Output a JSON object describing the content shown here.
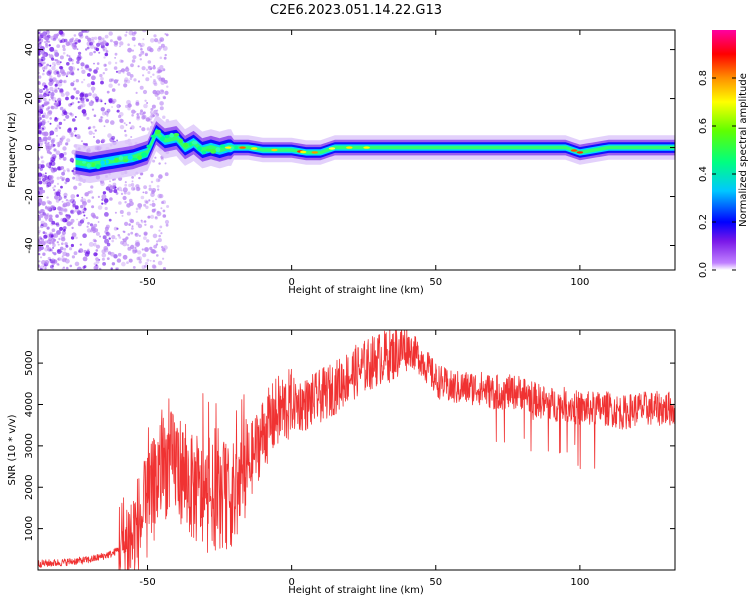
{
  "figure": {
    "title": "C2E6.2023.051.14.22.G13"
  },
  "colorbar": {
    "label": "Normalized spectral amplitude",
    "ticks": [
      "0.0",
      "0.2",
      "0.4",
      "0.6",
      "0.8"
    ],
    "tick_values": [
      0.0,
      0.2,
      0.4,
      0.6,
      0.8
    ],
    "range": [
      0,
      1
    ],
    "colormap": [
      "#ffffff",
      "#8a2be2",
      "#0000ff",
      "#00ffff",
      "#00ff00",
      "#ffff00",
      "#ff7f00",
      "#ff0000",
      "#ff00ff"
    ]
  },
  "colors": {
    "snr_line": "#f03232",
    "spec_low": "#b682f2",
    "spec_dark": "#6a10e8"
  },
  "chart_data": [
    {
      "type": "heatmap",
      "xlabel": "Height of straight line (km)",
      "ylabel": "Frequency (Hz)",
      "xlim": [
        -88,
        133
      ],
      "ylim": [
        -50,
        48
      ],
      "xticks": [
        -50,
        0,
        50,
        100
      ],
      "yticks": [
        -40,
        -20,
        0,
        20,
        40
      ],
      "ridge": {
        "x": [
          -75,
          -70,
          -65,
          -60,
          -55,
          -50,
          -47,
          -44,
          -40,
          -37,
          -34,
          -31,
          -28,
          -25,
          -22,
          -20,
          -15,
          -10,
          -5,
          0,
          5,
          10,
          15,
          20,
          30,
          50,
          80,
          95,
          100,
          105,
          110,
          133
        ],
        "frequency": [
          -6,
          -7,
          -6,
          -5,
          -4,
          -2,
          6,
          3,
          4,
          0,
          2,
          -1,
          0,
          -1,
          0,
          0,
          0,
          -1,
          -1,
          -1,
          -2,
          -2,
          0,
          0,
          0,
          0,
          0,
          0,
          -2,
          -1,
          0,
          0
        ]
      }
    },
    {
      "type": "line",
      "xlabel": "Height of straight line (km)",
      "ylabel": "SNR (10 * v/v)",
      "xlim": [
        -88,
        133
      ],
      "ylim": [
        0,
        5800
      ],
      "xticks": [
        -50,
        0,
        50,
        100
      ],
      "yticks": [
        1000,
        2000,
        3000,
        4000,
        5000
      ],
      "series": [
        {
          "x": [
            -88,
            -80,
            -70,
            -62,
            -55,
            -50,
            -45,
            -40,
            -35,
            -30,
            -25,
            -20,
            -15,
            -10,
            -5,
            0,
            5,
            10,
            15,
            20,
            25,
            30,
            35,
            40,
            45,
            50,
            55,
            60,
            65,
            70,
            75,
            80,
            85,
            90,
            95,
            100,
            105,
            110,
            115,
            120,
            125,
            133
          ],
          "y": [
            150,
            180,
            250,
            400,
            800,
            1500,
            2500,
            2600,
            2000,
            1700,
            1800,
            1800,
            2500,
            3300,
            3800,
            4000,
            4000,
            4200,
            4400,
            4700,
            4900,
            5100,
            5200,
            5400,
            5100,
            4600,
            4400,
            4400,
            4400,
            4300,
            4300,
            4300,
            4100,
            4000,
            4000,
            3900,
            3900,
            3900,
            3800,
            3900,
            3900,
            3900
          ]
        }
      ]
    }
  ]
}
